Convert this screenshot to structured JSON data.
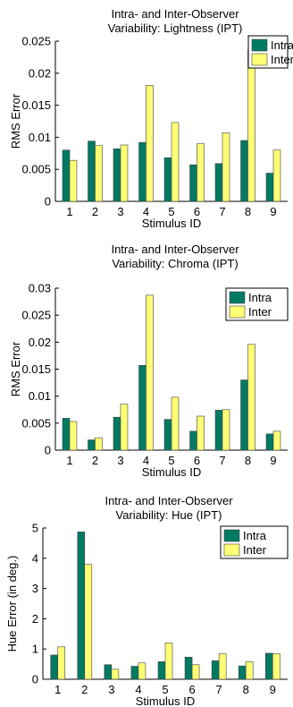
{
  "colors": {
    "intra": "#007a63",
    "inter": "#ffff75",
    "bar_edge": "#404040",
    "axis": "#000000"
  },
  "chart_data": [
    {
      "type": "bar",
      "title": "Intra- and Inter-Observer\nVariability: Lightness (IPT)",
      "xlabel": "Stimulus ID",
      "ylabel": "RMS Error",
      "categories": [
        "1",
        "2",
        "3",
        "4",
        "5",
        "6",
        "7",
        "8",
        "9"
      ],
      "ylim": [
        0,
        0.025
      ],
      "yticks": [
        0,
        0.005,
        0.01,
        0.015,
        0.02,
        0.025
      ],
      "ytick_labels": [
        "0",
        "0.005",
        "0.01",
        "0.015",
        "0.02",
        "0.025"
      ],
      "legend": "top-right",
      "grid": false,
      "series": [
        {
          "name": "Intra",
          "values": [
            0.008,
            0.0094,
            0.0082,
            0.0092,
            0.0068,
            0.0057,
            0.0059,
            0.0095,
            0.0044
          ]
        },
        {
          "name": "Inter",
          "values": [
            0.0064,
            0.0087,
            0.0088,
            0.0181,
            0.0123,
            0.009,
            0.0107,
            0.0237,
            0.008
          ]
        }
      ]
    },
    {
      "type": "bar",
      "title": "Intra- and Inter-Observer\nVariability: Chroma (IPT)",
      "xlabel": "Stimulus ID",
      "ylabel": "RMS Error",
      "categories": [
        "1",
        "2",
        "3",
        "4",
        "5",
        "6",
        "7",
        "8",
        "9"
      ],
      "ylim": [
        0,
        0.03
      ],
      "yticks": [
        0,
        0.005,
        0.01,
        0.015,
        0.02,
        0.025,
        0.03
      ],
      "ytick_labels": [
        "0",
        "0.005",
        "0.01",
        "0.015",
        "0.02",
        "0.025",
        "0.03"
      ],
      "legend": "top-right",
      "grid": false,
      "series": [
        {
          "name": "Intra",
          "values": [
            0.0059,
            0.0019,
            0.0061,
            0.0157,
            0.0057,
            0.0035,
            0.0074,
            0.013,
            0.003
          ]
        },
        {
          "name": "Inter",
          "values": [
            0.0053,
            0.0023,
            0.0085,
            0.0287,
            0.0098,
            0.0063,
            0.0075,
            0.0196,
            0.0035
          ]
        }
      ]
    },
    {
      "type": "bar",
      "title": "Intra- and Inter-Observer\nVariability: Hue (IPT)",
      "xlabel": "Stimulus ID",
      "ylabel": "Hue Error (in deg.)",
      "categories": [
        "1",
        "2",
        "3",
        "4",
        "5",
        "6",
        "7",
        "8",
        "9"
      ],
      "ylim": [
        0,
        5
      ],
      "yticks": [
        0,
        1,
        2,
        3,
        4,
        5
      ],
      "ytick_labels": [
        "0",
        "1",
        "2",
        "3",
        "4",
        "5"
      ],
      "legend": "top-right",
      "grid": false,
      "series": [
        {
          "name": "Intra",
          "values": [
            0.8,
            4.87,
            0.48,
            0.43,
            0.58,
            0.73,
            0.61,
            0.44,
            0.86
          ]
        },
        {
          "name": "Inter",
          "values": [
            1.07,
            3.8,
            0.33,
            0.54,
            1.2,
            0.48,
            0.84,
            0.58,
            0.84
          ]
        }
      ]
    }
  ]
}
